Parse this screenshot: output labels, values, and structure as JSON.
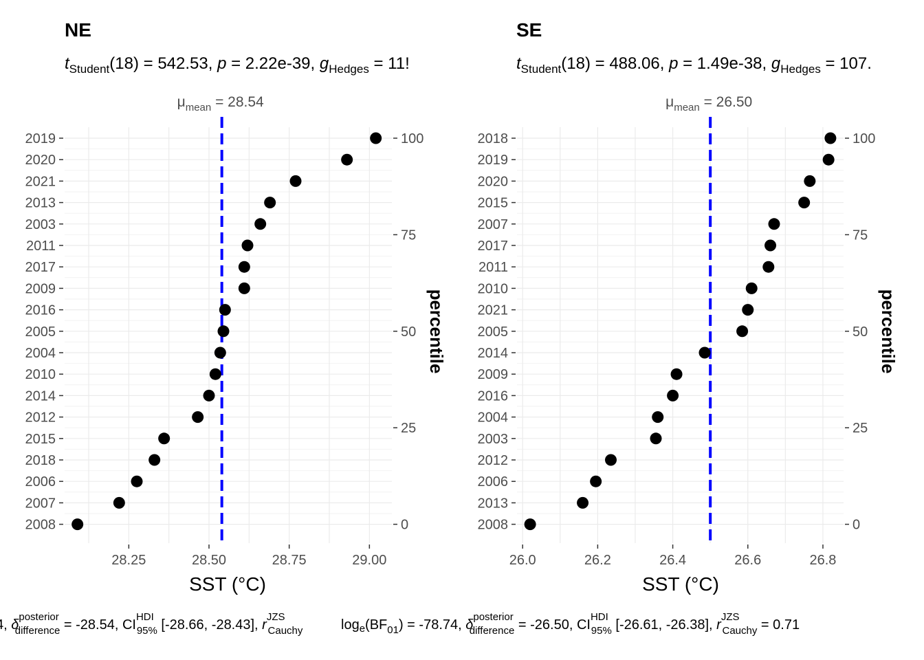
{
  "chart_data": [
    {
      "type": "scatter",
      "title": "NE",
      "subtitle": {
        "t_label": "t",
        "t_sub": "Student",
        "df": "(18) = 542.53, ",
        "p_label": "p",
        "p_text": " = 2.22e-39, ",
        "g_label": "g",
        "g_sub": "Hedges",
        "g_text": " = 11!"
      },
      "mean_label": {
        "mu": "μ",
        "sub": "mean",
        "text": " = 28.54"
      },
      "xlabel": "SST (°C)",
      "ylabel_right": "percentile",
      "xlim": [
        28.05,
        29.07
      ],
      "xticks": [
        "28.25",
        "28.50",
        "28.75",
        "29.00"
      ],
      "mean": 28.54,
      "right_ticks": [
        "100",
        "75",
        "50",
        "25",
        "0"
      ],
      "categories": [
        "2019",
        "2020",
        "2021",
        "2013",
        "2003",
        "2011",
        "2017",
        "2009",
        "2016",
        "2005",
        "2004",
        "2010",
        "2014",
        "2012",
        "2015",
        "2018",
        "2006",
        "2007",
        "2008"
      ],
      "values": [
        29.02,
        28.93,
        28.77,
        28.69,
        28.66,
        28.62,
        28.61,
        28.61,
        28.55,
        28.545,
        28.535,
        28.52,
        28.5,
        28.465,
        28.36,
        28.33,
        28.275,
        28.22,
        28.09
      ]
    },
    {
      "type": "scatter",
      "title": "SE",
      "subtitle": {
        "t_label": "t",
        "t_sub": "Student",
        "df": "(18) = 488.06, ",
        "p_label": "p",
        "p_text": " = 1.49e-38, ",
        "g_label": "g",
        "g_sub": "Hedges",
        "g_text": " = 107."
      },
      "mean_label": {
        "mu": "μ",
        "sub": "mean",
        "text": " = 26.50"
      },
      "xlabel": "SST (°C)",
      "ylabel_right": "percentile",
      "xlim": [
        25.985,
        26.855
      ],
      "xticks": [
        "26.0",
        "26.2",
        "26.4",
        "26.6",
        "26.8"
      ],
      "mean": 26.5,
      "right_ticks": [
        "100",
        "75",
        "50",
        "25",
        "0"
      ],
      "categories": [
        "2018",
        "2019",
        "2020",
        "2015",
        "2007",
        "2017",
        "2011",
        "2010",
        "2021",
        "2005",
        "2014",
        "2009",
        "2016",
        "2004",
        "2003",
        "2012",
        "2006",
        "2013",
        "2008"
      ],
      "values": [
        26.82,
        26.815,
        26.765,
        26.75,
        26.67,
        26.66,
        26.655,
        26.61,
        26.6,
        26.585,
        26.485,
        26.41,
        26.4,
        26.36,
        26.355,
        26.235,
        26.195,
        26.16,
        26.02
      ]
    }
  ],
  "captions": [
    {
      "lead": "4, ",
      "delta": "δ",
      "sup": "posterior",
      "sub": "difference",
      "v1": " = -28.54, CI",
      "ci_sup": "HDI",
      "ci_sub": "95%",
      "v2": " [-28.66, -28.43], ",
      "r": "r",
      "r_sup": "JZS",
      "r_sub": "Cauchy",
      "v3": ""
    },
    {
      "lead": "log",
      "paren": "(BF",
      "bf_sub": "01",
      "v0": ") = -78.74, ",
      "delta": "δ",
      "sup": "posterior",
      "sub": "difference",
      "v1": " = -26.50, CI",
      "ci_sup": "HDI",
      "ci_sub": "95%",
      "v2": " [-26.61, -26.38], ",
      "r": "r",
      "r_sup": "JZS",
      "r_sub": "Cauchy",
      "v3": " = 0.71"
    }
  ],
  "colors": {
    "points": "#000000",
    "mean_line": "#0000ff",
    "grid": "#ebebeb",
    "tick_text": "#4d4d4d"
  }
}
